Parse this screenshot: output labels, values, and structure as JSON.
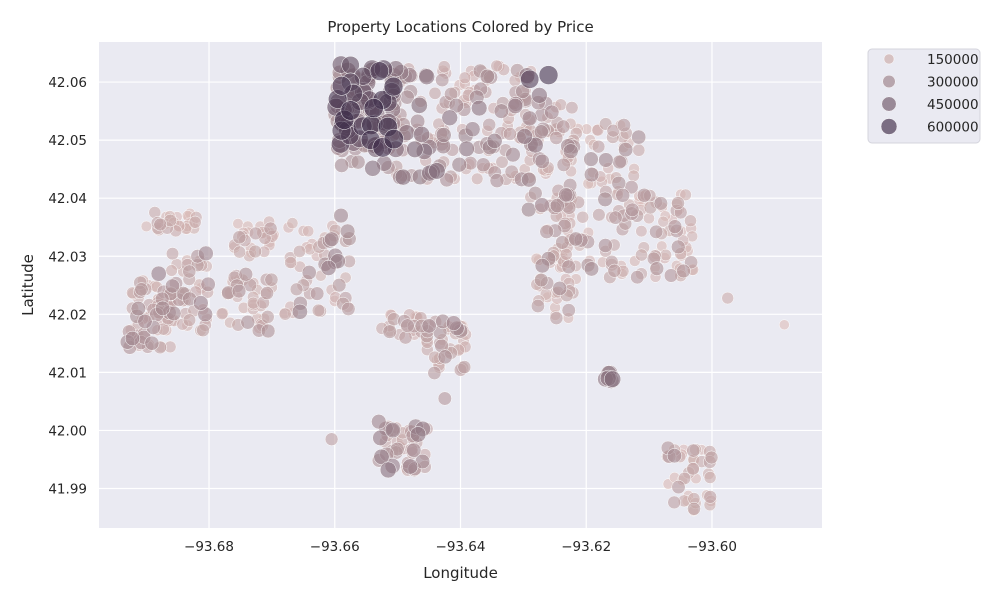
{
  "chart_data": {
    "type": "scatter",
    "title": "Property Locations Colored by Price",
    "xlabel": "Longitude",
    "ylabel": "Latitude",
    "xlim": [
      -93.6975,
      -93.5825
    ],
    "ylim": [
      41.9832,
      42.0669
    ],
    "x_ticks": [
      -93.68,
      -93.66,
      -93.64,
      -93.62,
      -93.6
    ],
    "x_tick_labels": [
      "−93.68",
      "−93.66",
      "−93.64",
      "−93.62",
      "−93.60"
    ],
    "y_ticks": [
      41.99,
      42.0,
      42.01,
      42.02,
      42.03,
      42.04,
      42.05,
      42.06
    ],
    "y_tick_labels": [
      "41.99",
      "42.00",
      "42.01",
      "42.02",
      "42.03",
      "42.04",
      "42.05",
      "42.06"
    ],
    "grid": true,
    "legend_position": "outside-top-right",
    "legend": [
      {
        "label": "150000",
        "value": 150000
      },
      {
        "label": "300000",
        "value": 300000
      },
      {
        "label": "450000",
        "value": 450000
      },
      {
        "label": "600000",
        "value": 600000
      }
    ],
    "size_range": [
      3,
      10
    ],
    "price_range": [
      30000,
      700000
    ],
    "colors": {
      "low": "#f0cfc7",
      "high": "#2d1e3e",
      "background": "#eaeaf2",
      "grid": "#ffffff"
    },
    "clusters": [
      {
        "lon": [
          -93.69,
          -93.682
        ],
        "lat": [
          42.034,
          42.038
        ],
        "n": 28,
        "price": [
          100000,
          220000
        ]
      },
      {
        "lon": [
          -93.676,
          -93.669
        ],
        "lat": [
          42.03,
          42.036
        ],
        "n": 28,
        "price": [
          100000,
          220000
        ]
      },
      {
        "lon": [
          -93.693,
          -93.686
        ],
        "lat": [
          42.014,
          42.026
        ],
        "n": 70,
        "price": [
          120000,
          300000
        ]
      },
      {
        "lon": [
          -93.686,
          -93.68
        ],
        "lat": [
          42.017,
          42.031
        ],
        "n": 45,
        "price": [
          130000,
          320000
        ]
      },
      {
        "lon": [
          -93.678,
          -93.67
        ],
        "lat": [
          42.017,
          42.027
        ],
        "n": 40,
        "price": [
          120000,
          260000
        ]
      },
      {
        "lon": [
          -93.668,
          -93.657
        ],
        "lat": [
          42.02,
          42.037
        ],
        "n": 55,
        "price": [
          120000,
          340000
        ]
      },
      {
        "lon": [
          -93.66,
          -93.65
        ],
        "lat": [
          42.045,
          42.063
        ],
        "n": 100,
        "price": [
          250000,
          680000
        ]
      },
      {
        "lon": [
          -93.651,
          -93.641
        ],
        "lat": [
          42.043,
          42.063
        ],
        "n": 70,
        "price": [
          150000,
          420000
        ]
      },
      {
        "lon": [
          -93.641,
          -93.627
        ],
        "lat": [
          42.043,
          42.063
        ],
        "n": 95,
        "price": [
          120000,
          380000
        ]
      },
      {
        "lon": [
          -93.63,
          -93.622
        ],
        "lat": [
          42.038,
          42.057
        ],
        "n": 55,
        "price": [
          130000,
          330000
        ]
      },
      {
        "lon": [
          -93.628,
          -93.622
        ],
        "lat": [
          42.019,
          42.04
        ],
        "n": 55,
        "price": [
          110000,
          300000
        ]
      },
      {
        "lon": [
          -93.624,
          -93.611
        ],
        "lat": [
          42.026,
          42.053
        ],
        "n": 100,
        "price": [
          110000,
          300000
        ]
      },
      {
        "lon": [
          -93.612,
          -93.603
        ],
        "lat": [
          42.026,
          42.041
        ],
        "n": 60,
        "price": [
          100000,
          260000
        ]
      },
      {
        "lon": [
          -93.653,
          -93.646
        ],
        "lat": [
          42.016,
          42.02
        ],
        "n": 22,
        "price": [
          120000,
          240000
        ]
      },
      {
        "lon": [
          -93.646,
          -93.639
        ],
        "lat": [
          42.009,
          42.019
        ],
        "n": 40,
        "price": [
          140000,
          320000
        ]
      },
      {
        "lon": [
          -93.653,
          -93.645
        ],
        "lat": [
          41.993,
          42.001
        ],
        "n": 40,
        "price": [
          150000,
          360000
        ]
      },
      {
        "lon": [
          -93.608,
          -93.6
        ],
        "lat": [
          41.986,
          41.997
        ],
        "n": 40,
        "price": [
          100000,
          280000
        ]
      },
      {
        "lon": [
          -93.617,
          -93.615
        ],
        "lat": [
          42.008,
          42.01
        ],
        "n": 5,
        "price": [
          350000,
          420000
        ]
      }
    ],
    "points": [
      {
        "x": -93.6585,
        "y": 42.0535,
        "p": 650000
      },
      {
        "x": -93.6575,
        "y": 42.06,
        "p": 560000
      },
      {
        "x": -93.626,
        "y": 42.0612,
        "p": 600000
      },
      {
        "x": -93.629,
        "y": 42.0605,
        "p": 550000
      },
      {
        "x": -93.6555,
        "y": 42.061,
        "p": 520000
      },
      {
        "x": -93.657,
        "y": 42.0495,
        "p": 420000
      },
      {
        "x": -93.6515,
        "y": 41.9932,
        "p": 380000
      },
      {
        "x": -93.648,
        "y": 41.9938,
        "p": 340000
      },
      {
        "x": -93.661,
        "y": 42.028,
        "p": 330000
      },
      {
        "x": -93.659,
        "y": 42.037,
        "p": 300000
      },
      {
        "x": -93.5975,
        "y": 42.0228,
        "p": 150000
      },
      {
        "x": -93.5885,
        "y": 42.0182,
        "p": 90000
      },
      {
        "x": -93.688,
        "y": 42.027,
        "p": 330000
      },
      {
        "x": -93.645,
        "y": 42.018,
        "p": 280000
      },
      {
        "x": -93.6425,
        "y": 42.0055,
        "p": 230000
      },
      {
        "x": -93.6605,
        "y": 41.9985,
        "p": 200000
      },
      {
        "x": -93.653,
        "y": 42.0015,
        "p": 300000
      },
      {
        "x": -93.607,
        "y": 41.997,
        "p": 240000
      },
      {
        "x": -93.6165,
        "y": 42.009,
        "p": 380000
      },
      {
        "x": -93.6335,
        "y": 42.055,
        "p": 300000
      },
      {
        "x": -93.659,
        "y": 42.063,
        "p": 480000
      },
      {
        "x": -93.6545,
        "y": 42.057,
        "p": 470000
      },
      {
        "x": -93.654,
        "y": 42.062,
        "p": 430000
      }
    ]
  }
}
